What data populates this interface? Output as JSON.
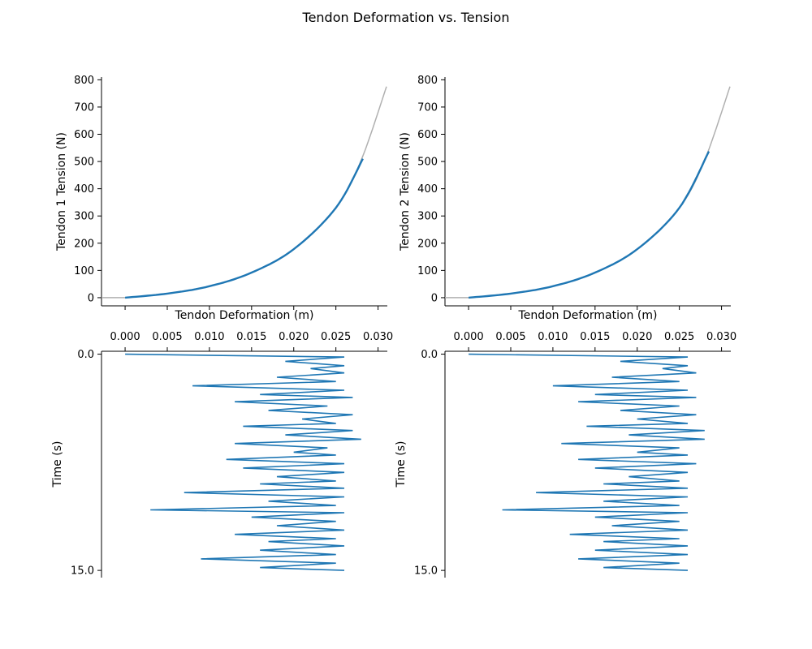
{
  "figure": {
    "title": "Tendon Deformation vs. Tension"
  },
  "colors": {
    "curve": "#b0b0b0",
    "data": "#1f77b4",
    "axis": "#000000"
  },
  "chart_data": [
    {
      "type": "line",
      "xlabel": "Tendon Deformation (m)",
      "ylabel": "Tendon 1 Tension (N)",
      "xlim": [
        -0.0028,
        0.0311
      ],
      "ylim": [
        -30,
        810
      ],
      "x_ticks": [
        "0.000",
        "0.005",
        "0.010",
        "0.015",
        "0.020",
        "0.025",
        "0.030"
      ],
      "y_ticks": [
        "0",
        "100",
        "200",
        "300",
        "400",
        "500",
        "600",
        "700",
        "800"
      ],
      "grid": false,
      "series": [
        {
          "role": "model_curve",
          "x": [
            -0.003,
            0.0,
            0.005,
            0.01,
            0.015,
            0.02,
            0.025,
            0.028,
            0.031
          ],
          "y": [
            0,
            0,
            15,
            42,
            92,
            178,
            330,
            505,
            775
          ]
        },
        {
          "role": "measured",
          "x": [
            0.0,
            0.005,
            0.01,
            0.015,
            0.02,
            0.025,
            0.0282
          ],
          "y": [
            0,
            15,
            42,
            92,
            178,
            330,
            510
          ]
        }
      ]
    },
    {
      "type": "line",
      "xlabel": "Tendon Deformation (m)",
      "ylabel": "Tendon 2 Tension (N)",
      "xlim": [
        -0.0028,
        0.0311
      ],
      "ylim": [
        -30,
        810
      ],
      "x_ticks": [
        "0.000",
        "0.005",
        "0.010",
        "0.015",
        "0.020",
        "0.025",
        "0.030"
      ],
      "y_ticks": [
        "0",
        "100",
        "200",
        "300",
        "400",
        "500",
        "600",
        "700",
        "800"
      ],
      "grid": false,
      "series": [
        {
          "role": "model_curve",
          "x": [
            -0.003,
            0.0,
            0.005,
            0.01,
            0.015,
            0.02,
            0.025,
            0.028,
            0.031
          ],
          "y": [
            0,
            0,
            15,
            42,
            92,
            178,
            330,
            505,
            775
          ]
        },
        {
          "role": "measured",
          "x": [
            0.0,
            0.005,
            0.01,
            0.015,
            0.02,
            0.025,
            0.0285
          ],
          "y": [
            0,
            15,
            42,
            92,
            178,
            330,
            537
          ]
        }
      ]
    },
    {
      "type": "line",
      "xlabel": "",
      "ylabel": "Time (s)",
      "xlim": [
        -0.0028,
        0.0311
      ],
      "ylim": [
        15.5,
        -0.2
      ],
      "x_ticks": [
        "0.000",
        "0.005",
        "0.010",
        "0.015",
        "0.020",
        "0.025",
        "0.030"
      ],
      "y_ticks": [
        "0.0",
        "15.0"
      ],
      "x_axis_position": "top",
      "grid": false,
      "series": [
        {
          "role": "measured",
          "t": [
            0.0,
            0.2,
            0.5,
            0.8,
            1.0,
            1.3,
            1.6,
            1.9,
            2.2,
            2.5,
            2.8,
            3.0,
            3.3,
            3.6,
            3.9,
            4.2,
            4.5,
            4.8,
            5.0,
            5.3,
            5.6,
            5.9,
            6.2,
            6.5,
            6.8,
            7.0,
            7.3,
            7.6,
            7.9,
            8.2,
            8.5,
            8.8,
            9.0,
            9.3,
            9.6,
            9.9,
            10.2,
            10.5,
            10.8,
            11.0,
            11.3,
            11.6,
            11.9,
            12.2,
            12.5,
            12.8,
            13.0,
            13.3,
            13.6,
            13.9,
            14.2,
            14.5,
            14.8,
            15.0
          ],
          "x": [
            0.0,
            0.026,
            0.019,
            0.026,
            0.022,
            0.026,
            0.018,
            0.025,
            0.008,
            0.026,
            0.016,
            0.027,
            0.013,
            0.024,
            0.017,
            0.027,
            0.021,
            0.025,
            0.014,
            0.027,
            0.019,
            0.028,
            0.013,
            0.024,
            0.02,
            0.025,
            0.012,
            0.026,
            0.014,
            0.026,
            0.018,
            0.025,
            0.016,
            0.026,
            0.007,
            0.026,
            0.017,
            0.025,
            0.003,
            0.026,
            0.015,
            0.025,
            0.018,
            0.026,
            0.013,
            0.025,
            0.017,
            0.026,
            0.016,
            0.025,
            0.009,
            0.025,
            0.016,
            0.026
          ]
        }
      ]
    },
    {
      "type": "line",
      "xlabel": "",
      "ylabel": "Time (s)",
      "xlim": [
        -0.0028,
        0.0311
      ],
      "ylim": [
        15.5,
        -0.2
      ],
      "x_ticks": [
        "0.000",
        "0.005",
        "0.010",
        "0.015",
        "0.020",
        "0.025",
        "0.030"
      ],
      "y_ticks": [
        "0.0",
        "15.0"
      ],
      "x_axis_position": "top",
      "grid": false,
      "series": [
        {
          "role": "measured",
          "t": [
            0.0,
            0.2,
            0.5,
            0.8,
            1.0,
            1.3,
            1.6,
            1.9,
            2.2,
            2.5,
            2.8,
            3.0,
            3.3,
            3.6,
            3.9,
            4.2,
            4.5,
            4.8,
            5.0,
            5.3,
            5.6,
            5.9,
            6.2,
            6.5,
            6.8,
            7.0,
            7.3,
            7.6,
            7.9,
            8.2,
            8.5,
            8.8,
            9.0,
            9.3,
            9.6,
            9.9,
            10.2,
            10.5,
            10.8,
            11.0,
            11.3,
            11.6,
            11.9,
            12.2,
            12.5,
            12.8,
            13.0,
            13.3,
            13.6,
            13.9,
            14.2,
            14.5,
            14.8,
            15.0
          ],
          "x": [
            0.0,
            0.026,
            0.018,
            0.026,
            0.023,
            0.027,
            0.017,
            0.025,
            0.01,
            0.026,
            0.015,
            0.027,
            0.013,
            0.025,
            0.018,
            0.027,
            0.02,
            0.026,
            0.014,
            0.028,
            0.019,
            0.028,
            0.011,
            0.025,
            0.02,
            0.026,
            0.013,
            0.027,
            0.015,
            0.026,
            0.019,
            0.025,
            0.016,
            0.026,
            0.008,
            0.026,
            0.016,
            0.025,
            0.004,
            0.026,
            0.015,
            0.025,
            0.017,
            0.026,
            0.012,
            0.025,
            0.016,
            0.026,
            0.015,
            0.026,
            0.013,
            0.025,
            0.016,
            0.026
          ]
        }
      ]
    }
  ]
}
